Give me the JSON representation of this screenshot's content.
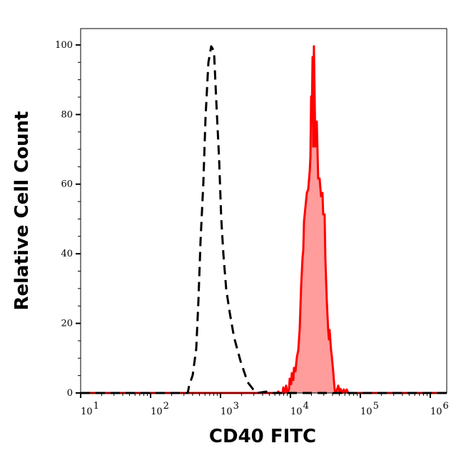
{
  "chart_data": {
    "type": "line",
    "title": "",
    "xlabel": "CD40 FITC",
    "ylabel": "Relative Cell Count",
    "x_scale": "log",
    "xlim": [
      10,
      1720000
    ],
    "ylim": [
      0,
      104.7
    ],
    "x_ticks": [
      {
        "base": "10",
        "exp": "1",
        "value": 10
      },
      {
        "base": "10",
        "exp": "2",
        "value": 100
      },
      {
        "base": "10",
        "exp": "3",
        "value": 1000
      },
      {
        "base": "10",
        "exp": "4",
        "value": 10000
      },
      {
        "base": "10",
        "exp": "5",
        "value": 100000
      },
      {
        "base": "10",
        "exp": "6",
        "value": 1000000
      }
    ],
    "y_ticks": [
      "0",
      "20",
      "40",
      "60",
      "80",
      "100"
    ],
    "grid": false,
    "legend": "none",
    "series": [
      {
        "style": "dashed",
        "color": "#000000",
        "fill": "none",
        "points": [
          [
            10,
            0
          ],
          [
            340,
            0
          ],
          [
            356,
            2.1
          ],
          [
            400,
            5.1
          ],
          [
            450,
            12.7
          ],
          [
            483,
            26.3
          ],
          [
            518,
            43.5
          ],
          [
            569,
            60.6
          ],
          [
            611,
            79.1
          ],
          [
            671,
            94.9
          ],
          [
            737,
            99.6
          ],
          [
            809,
            98.2
          ],
          [
            868,
            84.6
          ],
          [
            954,
            67.4
          ],
          [
            1024,
            50.3
          ],
          [
            1099,
            40.0
          ],
          [
            1207,
            29.8
          ],
          [
            1358,
            23.0
          ],
          [
            1563,
            16.0
          ],
          [
            1931,
            9.2
          ],
          [
            2443,
            3.1
          ],
          [
            2945,
            1.0
          ],
          [
            3400,
            0
          ],
          [
            4500,
            0.4
          ],
          [
            5000,
            0
          ],
          [
            1720000,
            0
          ]
        ]
      },
      {
        "style": "solid-filled",
        "color": "#ff0000",
        "fill": "#ff9c9c",
        "points": [
          [
            10,
            0
          ],
          [
            6400,
            0
          ],
          [
            6710,
            0.4
          ],
          [
            7030,
            0
          ],
          [
            7730,
            0
          ],
          [
            7910,
            1.6
          ],
          [
            8280,
            0
          ],
          [
            8680,
            2.1
          ],
          [
            9100,
            0
          ],
          [
            9540,
            1.0
          ],
          [
            9770,
            4.1
          ],
          [
            10240,
            2.5
          ],
          [
            10480,
            5.7
          ],
          [
            10990,
            3.7
          ],
          [
            11250,
            7.2
          ],
          [
            11790,
            6.2
          ],
          [
            12360,
            10.3
          ],
          [
            12950,
            12.3
          ],
          [
            13580,
            18.5
          ],
          [
            14230,
            30.8
          ],
          [
            14910,
            39.0
          ],
          [
            15270,
            41.1
          ],
          [
            15630,
            49.3
          ],
          [
            16380,
            53.4
          ],
          [
            17170,
            57.5
          ],
          [
            17990,
            58.5
          ],
          [
            18860,
            63.7
          ],
          [
            19310,
            67.8
          ],
          [
            19770,
            85.2
          ],
          [
            20240,
            80.5
          ],
          [
            20720,
            96.5
          ],
          [
            21210,
            70.8
          ],
          [
            21710,
            99.6
          ],
          [
            22750,
            70.8
          ],
          [
            23290,
            76.0
          ],
          [
            23840,
            78.0
          ],
          [
            24990,
            61.6
          ],
          [
            26190,
            61.6
          ],
          [
            27440,
            56.5
          ],
          [
            28760,
            57.5
          ],
          [
            29440,
            51.3
          ],
          [
            30850,
            51.3
          ],
          [
            31580,
            39.0
          ],
          [
            33100,
            26.7
          ],
          [
            34690,
            18.1
          ],
          [
            35510,
            15.4
          ],
          [
            36350,
            18.1
          ],
          [
            38090,
            12.3
          ],
          [
            39000,
            10.7
          ],
          [
            40870,
            6.2
          ],
          [
            42830,
            1.0
          ],
          [
            44880,
            0
          ],
          [
            48300,
            2.1
          ],
          [
            50600,
            0
          ],
          [
            52000,
            1.2
          ],
          [
            55600,
            0
          ],
          [
            58000,
            1.0
          ],
          [
            61000,
            0
          ],
          [
            64000,
            1.0
          ],
          [
            67000,
            0
          ],
          [
            1720000,
            0
          ]
        ]
      }
    ]
  }
}
